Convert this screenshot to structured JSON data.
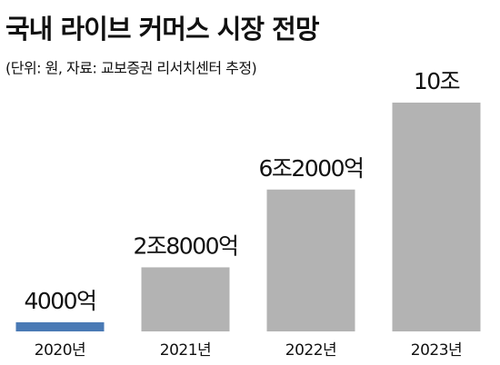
{
  "chart_data": {
    "type": "bar",
    "title": "국내 라이브 커머스 시장 전망",
    "subtitle": "(단위: 원, 자료: 교보증권 리서치센터 추정)",
    "categories": [
      "2020년",
      "2021년",
      "2022년",
      "2023년"
    ],
    "values": [
      400000000000,
      2800000000000,
      6200000000000,
      10000000000000
    ],
    "value_labels": [
      "4000억",
      "2조8000억",
      "6조2000억",
      "10조"
    ],
    "colors": [
      "#4a7ab5",
      "#b3b3b3",
      "#b3b3b3",
      "#b3b3b3"
    ]
  }
}
